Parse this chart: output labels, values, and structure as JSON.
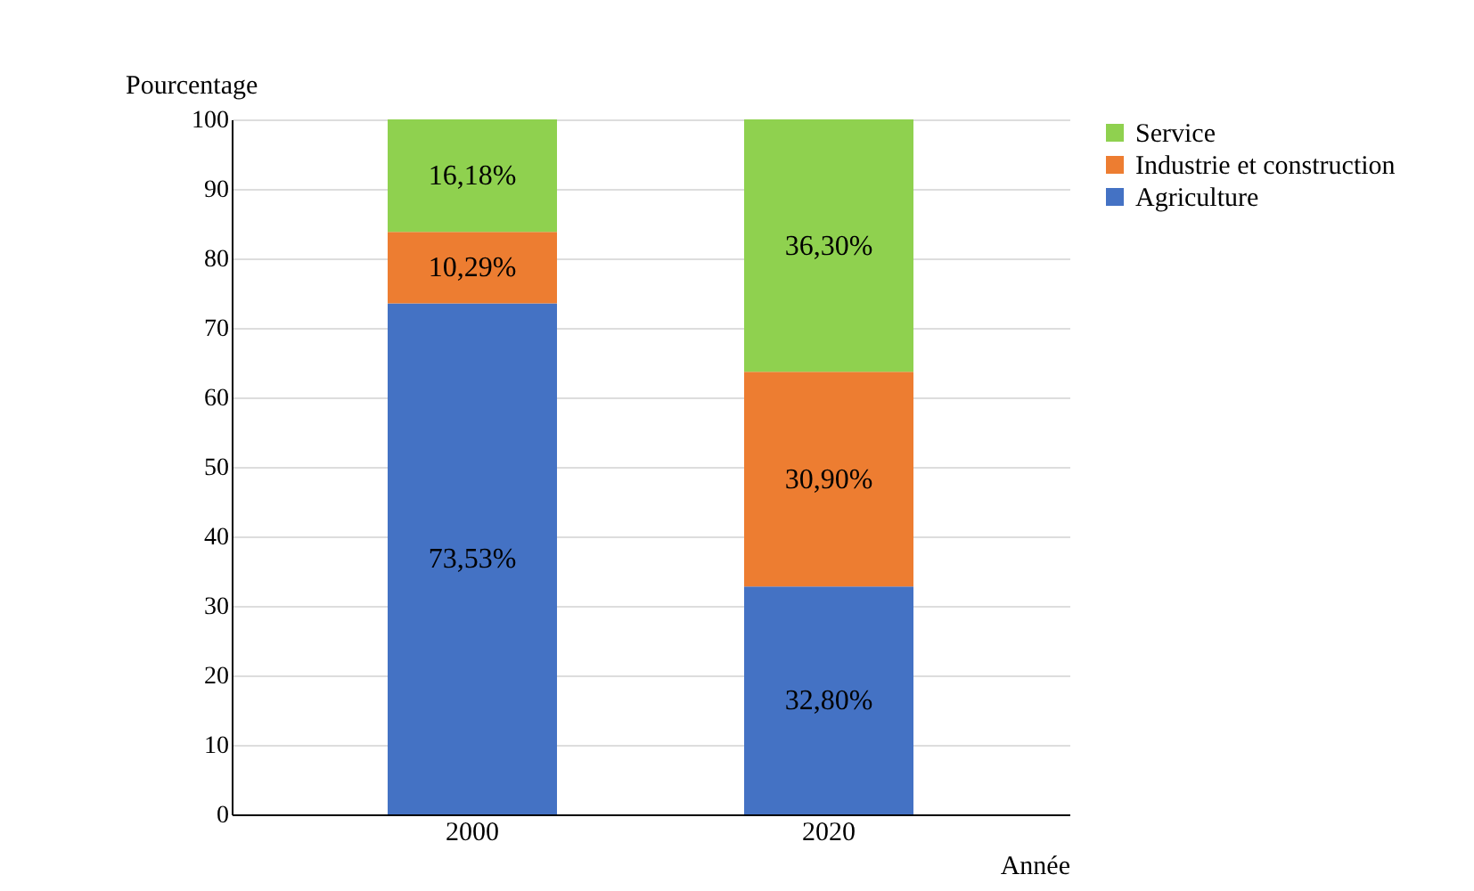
{
  "chart_data": {
    "type": "bar",
    "stacked": true,
    "categories": [
      "2000",
      "2020"
    ],
    "xlabel": "Année",
    "ylabel": "Pourcentage",
    "ylim": [
      0,
      100
    ],
    "yticks": [
      0,
      10,
      20,
      30,
      40,
      50,
      60,
      70,
      80,
      90,
      100
    ],
    "grid": "y",
    "legend": "right",
    "series": [
      {
        "name": "Agriculture",
        "color": "#4472c4",
        "values": [
          73.53,
          32.8
        ],
        "value_labels": [
          "73,53%",
          "32,80%"
        ]
      },
      {
        "name": "Industrie et construction",
        "color": "#ed7d31",
        "values": [
          10.29,
          30.9
        ],
        "value_labels": [
          "10,29%",
          "30,90%"
        ]
      },
      {
        "name": "Service",
        "color": "#8fd14f",
        "values": [
          16.18,
          36.3
        ],
        "value_labels": [
          "16,18%",
          "36,30%"
        ]
      }
    ]
  }
}
